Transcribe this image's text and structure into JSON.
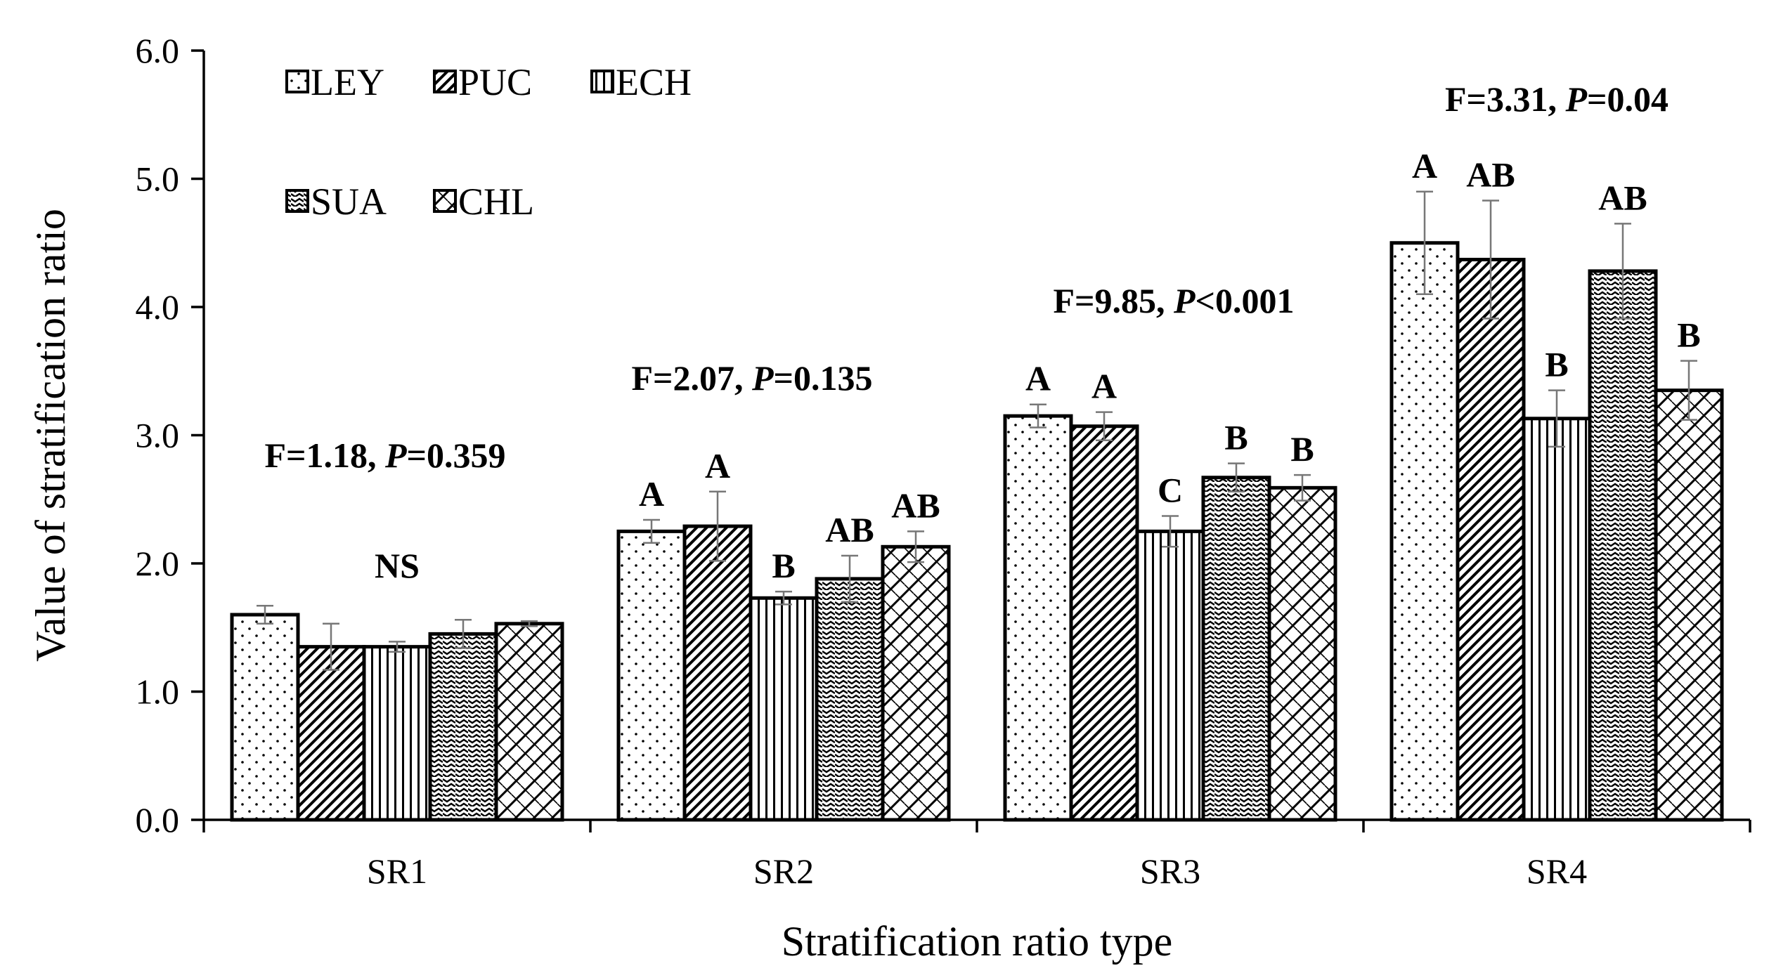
{
  "chart_data": {
    "type": "bar",
    "xlabel": "Stratification ratio type",
    "ylabel": "Value of stratification ratio",
    "ylim": [
      0,
      6
    ],
    "yticks": [
      "0.0",
      "1.0",
      "2.0",
      "3.0",
      "4.0",
      "5.0",
      "6.0"
    ],
    "grid": false,
    "legend_position": "top-left",
    "categories": [
      "SR1",
      "SR2",
      "SR3",
      "SR4"
    ],
    "series": [
      {
        "name": "LEY",
        "pattern": "dots",
        "values": [
          1.6,
          2.25,
          3.15,
          4.5
        ],
        "errors": [
          0.07,
          0.09,
          0.09,
          0.4
        ],
        "letters": [
          "",
          "A",
          "A",
          "A"
        ]
      },
      {
        "name": "PUC",
        "pattern": "diag-back",
        "values": [
          1.35,
          2.29,
          3.07,
          4.37
        ],
        "errors": [
          0.18,
          0.27,
          0.11,
          0.46
        ],
        "letters": [
          "",
          "A",
          "A",
          "AB"
        ]
      },
      {
        "name": "ECH",
        "pattern": "vertical",
        "values": [
          1.35,
          1.73,
          2.25,
          3.13
        ],
        "errors": [
          0.04,
          0.05,
          0.12,
          0.22
        ],
        "letters": [
          "",
          "B",
          "C",
          "B"
        ]
      },
      {
        "name": "SUA",
        "pattern": "wavy",
        "values": [
          1.45,
          1.88,
          2.67,
          4.28
        ],
        "errors": [
          0.11,
          0.18,
          0.11,
          0.37
        ],
        "letters": [
          "",
          "AB",
          "B",
          "AB"
        ]
      },
      {
        "name": "CHL",
        "pattern": "crosshatch-diag",
        "values": [
          1.53,
          2.13,
          2.59,
          3.35
        ],
        "errors": [
          0.02,
          0.12,
          0.1,
          0.23
        ],
        "letters": [
          "",
          "AB",
          "B",
          "B"
        ]
      }
    ],
    "group_annotations": [
      {
        "label": "NS"
      },
      {
        "label": ""
      },
      {
        "label": ""
      },
      {
        "label": ""
      }
    ],
    "stats": [
      {
        "f": "F=1.18, ",
        "p_label": "P",
        "p_rest": "=0.359"
      },
      {
        "f": "F=2.07, ",
        "p_label": "P",
        "p_rest": "=0.135"
      },
      {
        "f": "F=9.85, ",
        "p_label": "P",
        "p_rest": "<0.001"
      },
      {
        "f": "F=3.31, ",
        "p_label": "P",
        "p_rest": "=0.04"
      }
    ]
  }
}
